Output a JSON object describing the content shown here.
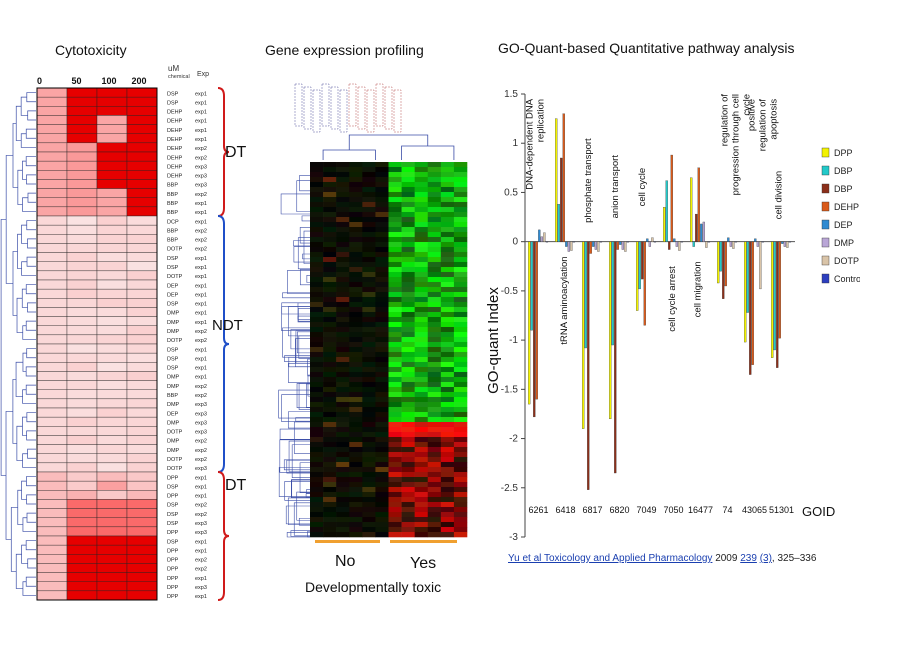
{
  "panels": {
    "cytotoxicity": {
      "title": "Cytotoxicity",
      "dose_unit_top": "uM",
      "dose_unit_bottom": "chemical",
      "doses": [
        "0",
        "50",
        "100",
        "200"
      ],
      "exp_header": "Exp",
      "rows": [
        [
          "DSP",
          "exp1"
        ],
        [
          "DSP",
          "exp1"
        ],
        [
          "DEHP",
          "exp1"
        ],
        [
          "DEHP",
          "exp1"
        ],
        [
          "DEHP",
          "exp1"
        ],
        [
          "DEHP",
          "exp1"
        ],
        [
          "DEHP",
          "exp2"
        ],
        [
          "DEHP",
          "exp2"
        ],
        [
          "DEHP",
          "exp3"
        ],
        [
          "DEHP",
          "exp3"
        ],
        [
          "BBP",
          "exp3"
        ],
        [
          "BBP",
          "exp2"
        ],
        [
          "BBP",
          "exp1"
        ],
        [
          "BBP",
          "exp1"
        ],
        [
          "DCP",
          "exp1"
        ],
        [
          "BBP",
          "exp2"
        ],
        [
          "BBP",
          "exp2"
        ],
        [
          "DOTP",
          "exp2"
        ],
        [
          "DSP",
          "exp1"
        ],
        [
          "DSP",
          "exp1"
        ],
        [
          "DOTP",
          "exp1"
        ],
        [
          "DEP",
          "exp1"
        ],
        [
          "DEP",
          "exp1"
        ],
        [
          "DSP",
          "exp1"
        ],
        [
          "DMP",
          "exp1"
        ],
        [
          "DMP",
          "exp1"
        ],
        [
          "DMP",
          "exp2"
        ],
        [
          "DOTP",
          "exp2"
        ],
        [
          "DSP",
          "exp1"
        ],
        [
          "DSP",
          "exp1"
        ],
        [
          "DSP",
          "exp1"
        ],
        [
          "DMP",
          "exp1"
        ],
        [
          "DMP",
          "exp2"
        ],
        [
          "BBP",
          "exp2"
        ],
        [
          "DMP",
          "exp3"
        ],
        [
          "DEP",
          "exp3"
        ],
        [
          "DMP",
          "exp3"
        ],
        [
          "DOTP",
          "exp3"
        ],
        [
          "DMP",
          "exp2"
        ],
        [
          "DMP",
          "exp2"
        ],
        [
          "DOTP",
          "exp2"
        ],
        [
          "DOTP",
          "exp3"
        ],
        [
          "DPP",
          "exp1"
        ],
        [
          "DSP",
          "exp1"
        ],
        [
          "DPP",
          "exp1"
        ],
        [
          "DSP",
          "exp2"
        ],
        [
          "DSP",
          "exp2"
        ],
        [
          "DSP",
          "exp3"
        ],
        [
          "DPP",
          "exp3"
        ],
        [
          "DSP",
          "exp1"
        ],
        [
          "DPP",
          "exp1"
        ],
        [
          "DPP",
          "exp2"
        ],
        [
          "DPP",
          "exp2"
        ],
        [
          "DPP",
          "exp1"
        ],
        [
          "DPP",
          "exp3"
        ],
        [
          "DPP",
          "exp1"
        ]
      ],
      "groups": [
        "DT",
        "NDT",
        "DT"
      ]
    },
    "expression": {
      "title": "Gene expression profiling",
      "no_label": "No",
      "yes_label": "Yes",
      "footer": "Developmentally  toxic"
    },
    "go_quant": {
      "title": "GO-Quant-based  Quantitative pathway analysis"
    }
  },
  "chart_data": [
    {
      "type": "heatmap",
      "title": "Cytotoxicity",
      "columns": [
        "0",
        "50",
        "100",
        "200"
      ],
      "row_groups": [
        {
          "label": "DT",
          "rows": 14,
          "level": "high"
        },
        {
          "label": "NDT",
          "rows": 28,
          "level": "low"
        },
        {
          "label": "DT",
          "rows": 14,
          "level": "medium"
        }
      ]
    },
    {
      "type": "heatmap",
      "title": "Gene expression profiling",
      "column_groups": [
        "No",
        "Yes"
      ],
      "xlabel": "Developmentally  toxic"
    },
    {
      "type": "bar",
      "title": "GO-Quant-based  Quantitative pathway analysis",
      "ylabel": "GO-quant Index",
      "xlabel": "GOID",
      "ylim": [
        -3,
        1.5
      ],
      "yticks": [
        "1.5",
        "1",
        "0.5",
        "0",
        "-0.5",
        "-1",
        "-1.5",
        "-2",
        "-2.5",
        "-3"
      ],
      "categories": [
        "6261",
        "6418",
        "6817",
        "6820",
        "7049",
        "7050",
        "16477",
        "74",
        "43065",
        "51301"
      ],
      "category_labels": [
        "DNA-dependent DNA replication",
        "tRNA aminoacylation",
        "phosphate transport",
        "anion transport",
        "cell cycle",
        "cell cycle arrest",
        "cell migration",
        "regulation of progression through cell cycle",
        "positive regulation of apoptosis",
        "cell division"
      ],
      "series": [
        {
          "name": "DPP",
          "color": "#f2f200",
          "values": [
            -1.65,
            1.25,
            -1.9,
            -1.8,
            -0.7,
            0.35,
            0.65,
            -0.42,
            -1.02,
            -1.18
          ]
        },
        {
          "name": "DBP",
          "color": "#22c9c9",
          "values": [
            -0.9,
            0.38,
            -1.08,
            -1.05,
            -0.48,
            0.62,
            -0.05,
            -0.3,
            -0.72,
            -1.1
          ]
        },
        {
          "name": "DBP",
          "color": "#8b2f1a",
          "values": [
            -1.78,
            0.85,
            -2.52,
            -2.35,
            -0.38,
            -0.08,
            0.28,
            -0.58,
            -1.35,
            -1.28
          ]
        },
        {
          "name": "DEHP",
          "color": "#d95a1a",
          "values": [
            -1.6,
            1.3,
            -0.12,
            -0.08,
            -0.85,
            0.88,
            0.75,
            -0.45,
            -1.25,
            -0.98
          ]
        },
        {
          "name": "DEP",
          "color": "#2f8ad1",
          "values": [
            0.12,
            -0.05,
            -0.05,
            -0.03,
            0.03,
            0.03,
            0.18,
            0.04,
            0.03,
            -0.02
          ]
        },
        {
          "name": "DMP",
          "color": "#b9a6d6",
          "values": [
            0.05,
            -0.1,
            -0.08,
            -0.08,
            -0.05,
            -0.05,
            0.2,
            -0.05,
            -0.05,
            -0.05
          ]
        },
        {
          "name": "DOTP",
          "color": "#d9c4a8",
          "values": [
            0.09,
            -0.09,
            -0.1,
            -0.1,
            0.04,
            -0.09,
            -0.06,
            -0.07,
            -0.48,
            -0.06
          ]
        },
        {
          "name": "Control",
          "color": "#2d3fbf",
          "values": [
            0.0,
            0.0,
            0.0,
            0.0,
            0.0,
            0.0,
            0.0,
            0.0,
            0.0,
            0.0
          ]
        }
      ]
    }
  ],
  "citation": {
    "journal": "Yu et al Toxicology and Applied Pharmacology",
    "year": "2009",
    "volume": "239",
    "issue": "(3)",
    "pages": ", 325–336"
  }
}
